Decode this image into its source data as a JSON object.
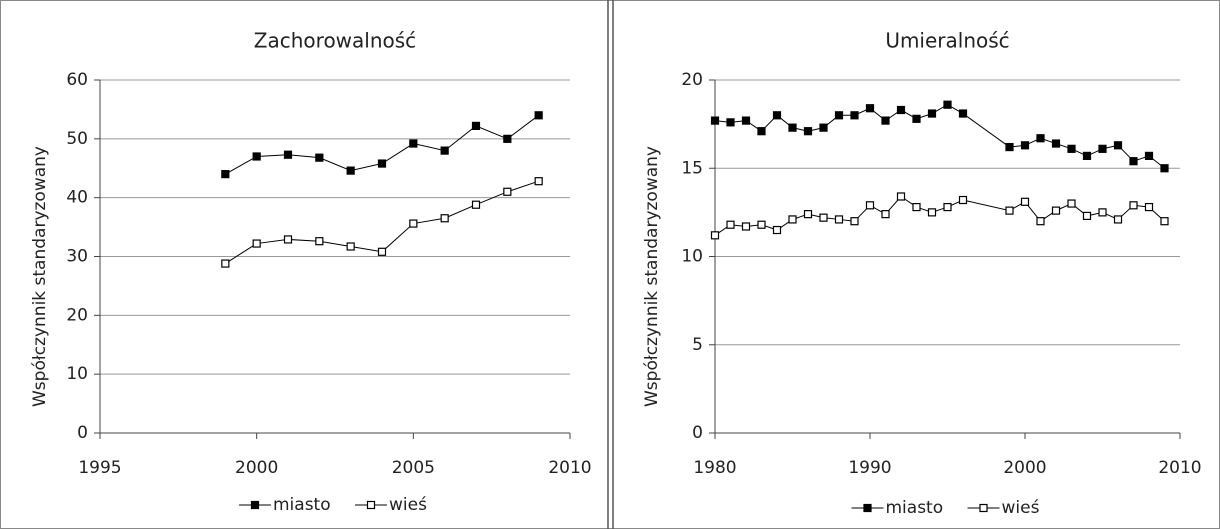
{
  "chart_data": [
    {
      "type": "line",
      "title": "Zachorowalność",
      "y_label": "Współczynnik standaryzowany",
      "x": [
        1999,
        2000,
        2001,
        2002,
        2003,
        2004,
        2005,
        2006,
        2007,
        2008,
        2009
      ],
      "series": [
        {
          "name": "miasto",
          "color": "#000000",
          "marker_fill": "#000000",
          "values": [
            44,
            47,
            47.3,
            46.8,
            44.6,
            45.8,
            49.2,
            48,
            52.2,
            50,
            54
          ]
        },
        {
          "name": "wieś",
          "color": "#000000",
          "marker_fill": "#ffffff",
          "values": [
            28.8,
            32.2,
            32.9,
            32.6,
            31.7,
            30.8,
            35.6,
            36.5,
            38.8,
            41,
            42.8
          ]
        }
      ],
      "xlim": [
        1995,
        2010
      ],
      "xticks": [
        1995,
        2000,
        2005,
        2010
      ],
      "ylim": [
        0,
        60
      ],
      "yticks": [
        0,
        10,
        20,
        30,
        40,
        50,
        60
      ],
      "grid": true
    },
    {
      "type": "line",
      "title": "Umieralność",
      "y_label": "Współczynnik standaryzowany",
      "x": [
        1980,
        1981,
        1982,
        1983,
        1984,
        1985,
        1986,
        1987,
        1988,
        1989,
        1990,
        1991,
        1992,
        1993,
        1994,
        1995,
        1996,
        1999,
        2000,
        2001,
        2002,
        2003,
        2004,
        2005,
        2006,
        2007,
        2008,
        2009
      ],
      "series": [
        {
          "name": "miasto",
          "color": "#000000",
          "marker_fill": "#000000",
          "values": [
            17.7,
            17.6,
            17.7,
            17.1,
            18.0,
            17.3,
            17.1,
            17.3,
            18.0,
            18.0,
            18.4,
            17.7,
            18.3,
            17.8,
            18.1,
            18.6,
            18.1,
            16.2,
            16.3,
            16.7,
            16.4,
            16.1,
            15.7,
            16.1,
            16.3,
            15.4,
            15.7,
            15.0
          ]
        },
        {
          "name": "wieś",
          "color": "#000000",
          "marker_fill": "#ffffff",
          "values": [
            11.2,
            11.8,
            11.7,
            11.8,
            11.5,
            12.1,
            12.4,
            12.2,
            12.1,
            12.0,
            12.9,
            12.4,
            13.4,
            12.8,
            12.5,
            12.8,
            13.2,
            12.6,
            13.1,
            12.0,
            12.6,
            13.0,
            12.3,
            12.5,
            12.1,
            12.9,
            12.8,
            12.0
          ]
        }
      ],
      "xlim": [
        1980,
        2010
      ],
      "xticks": [
        1980,
        1990,
        2000,
        2010
      ],
      "ylim": [
        0,
        20
      ],
      "yticks": [
        0,
        5,
        10,
        15,
        20
      ],
      "grid": true
    }
  ]
}
